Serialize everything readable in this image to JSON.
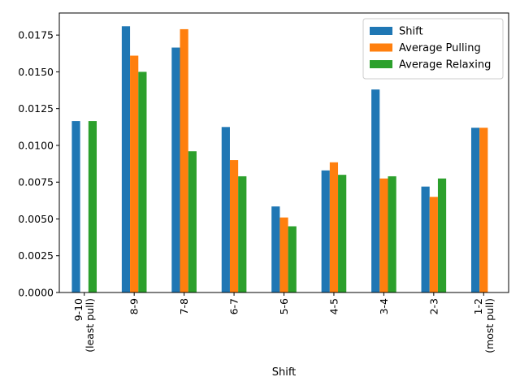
{
  "chart_data": {
    "type": "bar",
    "xlabel": "Shift",
    "ylabel": "",
    "title": "",
    "ylim": [
      0,
      0.019
    ],
    "yticks": [
      "0.0000",
      "0.0025",
      "0.0050",
      "0.0075",
      "0.0100",
      "0.0125",
      "0.0150",
      "0.0175"
    ],
    "categories": [
      [
        "9-10",
        "(least pull)"
      ],
      [
        "8-9"
      ],
      [
        "7-8"
      ],
      [
        "6-7"
      ],
      [
        "5-6"
      ],
      [
        "4-5"
      ],
      [
        "3-4"
      ],
      [
        "2-3"
      ],
      [
        "1-2",
        "(most pull)"
      ]
    ],
    "series": [
      {
        "name": "Shift",
        "color": "#1f77b4",
        "values": [
          0.01165,
          0.0181,
          0.01665,
          0.01125,
          0.00585,
          0.0083,
          0.0138,
          0.0072,
          0.0112
        ]
      },
      {
        "name": "Average Pulling",
        "color": "#ff7f0e",
        "values": [
          null,
          0.0161,
          0.0179,
          0.009,
          0.0051,
          0.00885,
          0.00775,
          0.0065,
          0.0112
        ]
      },
      {
        "name": "Average Relaxing",
        "color": "#2ca02c",
        "values": [
          0.01165,
          0.015,
          0.0096,
          0.0079,
          0.0045,
          0.008,
          0.0079,
          0.00775,
          null
        ]
      }
    ],
    "legend_position": "top-right",
    "grid": false
  }
}
